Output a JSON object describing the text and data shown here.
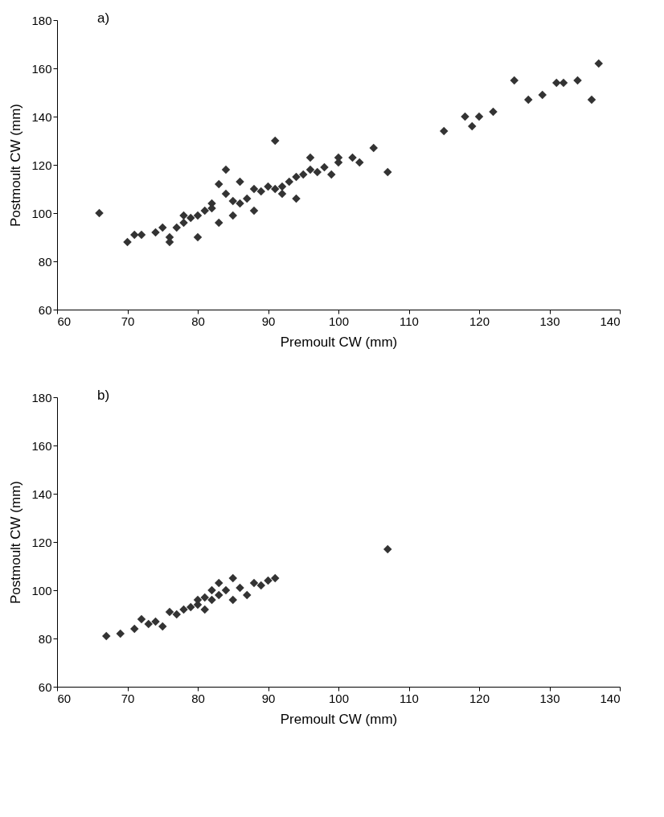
{
  "chart_data": [
    {
      "type": "scatter",
      "title": "a)",
      "xlabel": "Premoult CW (mm)",
      "ylabel": "Postmoult CW (mm)",
      "marker": "diamond",
      "grid": false,
      "xlim": [
        60,
        140
      ],
      "xticks": [
        60,
        70,
        80,
        90,
        100,
        110,
        120,
        130,
        140
      ],
      "ylim": [
        60,
        180
      ],
      "yticks": [
        60,
        80,
        100,
        120,
        140,
        160,
        180
      ],
      "series": [
        {
          "color": "#333333",
          "x": [
            66,
            70,
            71,
            72,
            74,
            75,
            76,
            76,
            77,
            78,
            78,
            79,
            80,
            80,
            81,
            82,
            82,
            83,
            83,
            84,
            84,
            85,
            85,
            86,
            86,
            87,
            88,
            88,
            89,
            90,
            91,
            91,
            92,
            92,
            93,
            94,
            94,
            95,
            96,
            96,
            97,
            98,
            99,
            100,
            100,
            102,
            103,
            105,
            107,
            115,
            118,
            119,
            120,
            122,
            125,
            127,
            129,
            131,
            132,
            134,
            136,
            137
          ],
          "values": [
            100,
            88,
            91,
            91,
            92,
            94,
            88,
            90,
            94,
            96,
            99,
            98,
            90,
            99,
            101,
            104,
            102,
            96,
            112,
            118,
            108,
            105,
            99,
            113,
            104,
            106,
            110,
            101,
            109,
            111,
            130,
            110,
            111,
            108,
            113,
            106,
            115,
            116,
            123,
            118,
            117,
            119,
            116,
            121,
            123,
            123,
            121,
            127,
            117,
            134,
            140,
            136,
            140,
            142,
            155,
            147,
            149,
            154,
            154,
            155,
            147,
            162
          ]
        }
      ]
    },
    {
      "type": "scatter",
      "title": "b)",
      "xlabel": "Premoult CW (mm)",
      "ylabel": "Postmoult CW (mm)",
      "marker": "diamond",
      "grid": false,
      "xlim": [
        60,
        140
      ],
      "xticks": [
        60,
        70,
        80,
        90,
        100,
        110,
        120,
        130,
        140
      ],
      "ylim": [
        60,
        180
      ],
      "yticks": [
        60,
        80,
        100,
        120,
        140,
        160,
        180
      ],
      "series": [
        {
          "color": "#333333",
          "x": [
            67,
            69,
            71,
            72,
            73,
            74,
            75,
            76,
            77,
            78,
            79,
            80,
            80,
            81,
            81,
            82,
            82,
            83,
            83,
            84,
            85,
            85,
            86,
            87,
            88,
            89,
            90,
            91,
            107
          ],
          "values": [
            81,
            82,
            84,
            88,
            86,
            87,
            85,
            91,
            90,
            92,
            93,
            94,
            96,
            97,
            92,
            100,
            96,
            98,
            103,
            100,
            105,
            96,
            101,
            98,
            103,
            102,
            104,
            105,
            117
          ]
        }
      ]
    }
  ]
}
